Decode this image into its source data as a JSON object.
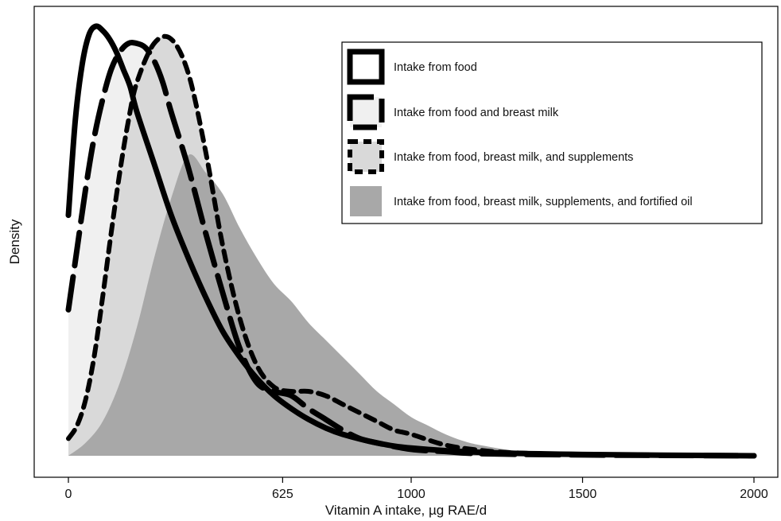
{
  "chart_data": {
    "type": "area",
    "title": "",
    "xlabel": "Vitamin A intake, µg RAE/d",
    "ylabel": "Density",
    "x_tick_values": [
      0,
      625,
      1000,
      1500,
      2000
    ],
    "x_tick_labels": [
      "0",
      "625",
      "1000",
      "1500",
      "2000"
    ],
    "xlim": [
      -100,
      2070
    ],
    "ylim": [
      -0.05,
      1.05
    ],
    "y_ticks_shown": false,
    "grid": false,
    "legend_position": "top-right",
    "series": [
      {
        "name": "Intake from food",
        "style": "solid-line",
        "color": "#000000",
        "x": [
          0,
          20,
          40,
          60,
          80,
          100,
          120,
          140,
          160,
          180,
          200,
          250,
          300,
          350,
          400,
          450,
          500,
          550,
          600,
          650,
          700,
          750,
          800,
          900,
          1000,
          1200,
          1500,
          2000
        ],
        "y": [
          0.56,
          0.78,
          0.91,
          0.98,
          1.0,
          0.99,
          0.97,
          0.94,
          0.9,
          0.86,
          0.8,
          0.68,
          0.56,
          0.46,
          0.37,
          0.29,
          0.23,
          0.18,
          0.14,
          0.11,
          0.085,
          0.065,
          0.05,
          0.03,
          0.018,
          0.008,
          0.003,
          0.0
        ]
      },
      {
        "name": "Intake from food and breast milk",
        "style": "long-dash",
        "color": "#000000",
        "fill": "#f0f0f0",
        "x": [
          0,
          25,
          50,
          75,
          100,
          125,
          150,
          175,
          200,
          225,
          250,
          275,
          300,
          350,
          400,
          450,
          500,
          550,
          600,
          650,
          700,
          750,
          800,
          850,
          900,
          1000,
          1100,
          1200,
          1500,
          2000
        ],
        "y": [
          0.34,
          0.48,
          0.62,
          0.74,
          0.83,
          0.9,
          0.94,
          0.96,
          0.96,
          0.95,
          0.92,
          0.87,
          0.8,
          0.67,
          0.52,
          0.38,
          0.25,
          0.17,
          0.15,
          0.14,
          0.11,
          0.085,
          0.06,
          0.04,
          0.03,
          0.015,
          0.01,
          0.005,
          0.002,
          0.0
        ]
      },
      {
        "name": "Intake from food, breast milk, and supplements",
        "style": "short-dash",
        "color": "#000000",
        "fill": "#d9d9d9",
        "x": [
          0,
          25,
          50,
          75,
          100,
          125,
          150,
          175,
          200,
          250,
          300,
          350,
          400,
          450,
          500,
          550,
          600,
          650,
          700,
          750,
          800,
          850,
          900,
          950,
          1000,
          1100,
          1200,
          1300,
          1500,
          2000
        ],
        "y": [
          0.04,
          0.07,
          0.13,
          0.23,
          0.37,
          0.52,
          0.66,
          0.78,
          0.87,
          0.96,
          0.97,
          0.89,
          0.71,
          0.49,
          0.32,
          0.21,
          0.16,
          0.15,
          0.15,
          0.14,
          0.12,
          0.1,
          0.08,
          0.06,
          0.05,
          0.025,
          0.013,
          0.007,
          0.003,
          0.0
        ]
      },
      {
        "name": "Intake from food, breast milk, supplements, and fortified oil",
        "style": "filled-area",
        "color": "#a8a8a8",
        "fill": "#a8a8a8",
        "x": [
          0,
          50,
          100,
          150,
          200,
          250,
          300,
          350,
          400,
          450,
          500,
          550,
          600,
          650,
          700,
          750,
          800,
          850,
          900,
          950,
          1000,
          1050,
          1100,
          1150,
          1200,
          1300,
          1400,
          1500,
          1700,
          2000
        ],
        "y": [
          0.0,
          0.03,
          0.08,
          0.17,
          0.3,
          0.46,
          0.6,
          0.7,
          0.66,
          0.61,
          0.53,
          0.46,
          0.4,
          0.36,
          0.31,
          0.27,
          0.23,
          0.19,
          0.15,
          0.12,
          0.09,
          0.07,
          0.05,
          0.035,
          0.025,
          0.012,
          0.006,
          0.003,
          0.001,
          0.0
        ]
      }
    ]
  }
}
